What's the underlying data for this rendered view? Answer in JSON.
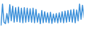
{
  "chart_data": {
    "type": "line",
    "color": "#3a8fd9",
    "tick_labels": false,
    "grid": false,
    "ylim": [
      0,
      100
    ],
    "yticks": [],
    "values": [
      20,
      92,
      30,
      25,
      60,
      28,
      90,
      35,
      85,
      30,
      80,
      32,
      82,
      30,
      78,
      28,
      80,
      30,
      78,
      32,
      76,
      30,
      78,
      28,
      74,
      30,
      60,
      25,
      70,
      28,
      66,
      30,
      62,
      28,
      64,
      26,
      58,
      30,
      60,
      28,
      62,
      30,
      66,
      28,
      68,
      30,
      70,
      32,
      72,
      30,
      74,
      28,
      72,
      35,
      92,
      40,
      88,
      45
    ]
  }
}
